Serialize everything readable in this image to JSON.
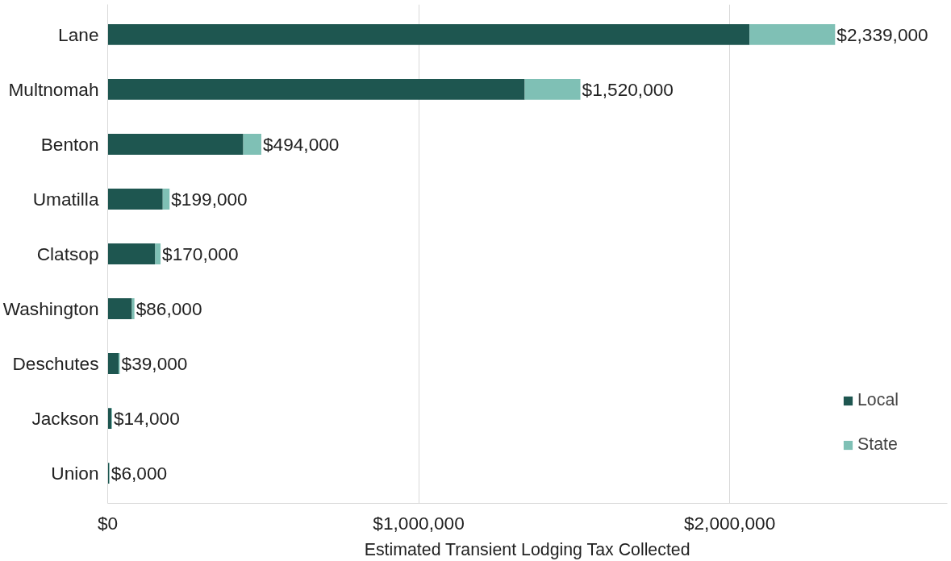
{
  "chart_data": {
    "type": "bar",
    "orientation": "horizontal",
    "stacked": true,
    "xlabel": "Estimated Transient Lodging Tax Collected",
    "categories": [
      "Lane",
      "Multnomah",
      "Benton",
      "Umatilla",
      "Clatsop",
      "Washington",
      "Deschutes",
      "Jackson",
      "Union"
    ],
    "series": [
      {
        "name": "Local",
        "color": "#1e5650",
        "values": [
          2064000,
          1341000,
          436000,
          177000,
          153000,
          78000,
          35000,
          12000,
          5000
        ]
      },
      {
        "name": "State",
        "color": "#7fc0b5",
        "values": [
          275000,
          179000,
          58000,
          22000,
          17000,
          8000,
          4000,
          2000,
          1000
        ]
      }
    ],
    "totals": [
      "$2,339,000",
      "$1,520,000",
      "$494,000",
      "$199,000",
      "$170,000",
      "$86,000",
      "$39,000",
      "$14,000",
      "$6,000"
    ],
    "xlim": [
      0,
      2700000
    ],
    "xticks": [
      {
        "value": 0,
        "label": "$0"
      },
      {
        "value": 1000000,
        "label": "$1,000,000"
      },
      {
        "value": 2000000,
        "label": "$2,000,000"
      }
    ],
    "grid": "x",
    "legend": "bottom right"
  }
}
